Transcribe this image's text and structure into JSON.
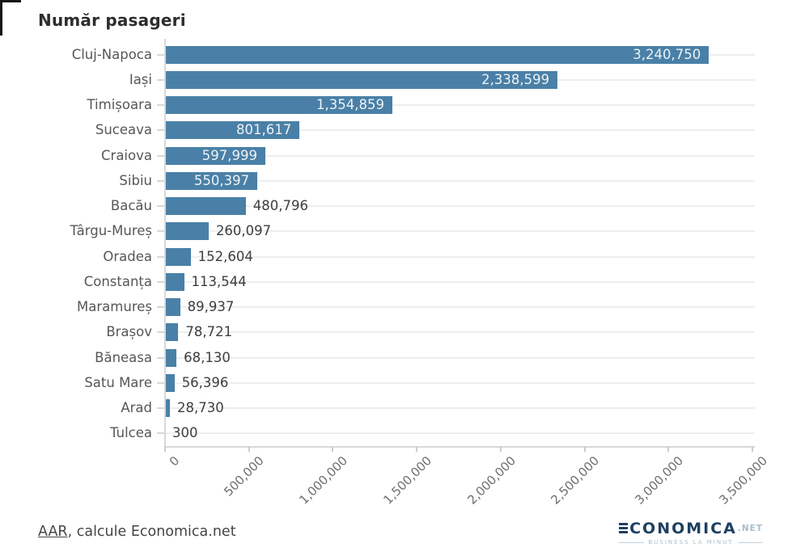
{
  "title": "Număr pasageri",
  "chart_data": {
    "type": "bar",
    "orientation": "horizontal",
    "title": "Număr pasageri",
    "categories": [
      "Cluj-Napoca",
      "Iași",
      "Timișoara",
      "Suceava",
      "Craiova",
      "Sibiu",
      "Bacău",
      "Târgu-Mureș",
      "Oradea",
      "Constanța",
      "Maramureș",
      "Brașov",
      "Băneasa",
      "Satu Mare",
      "Arad",
      "Tulcea"
    ],
    "values": [
      3240750,
      2338599,
      1354859,
      801617,
      597999,
      550397,
      480796,
      260097,
      152604,
      113544,
      89937,
      78721,
      68130,
      56396,
      28730,
      300
    ],
    "xlim": [
      0,
      3500000
    ],
    "x_ticks": [
      0,
      500000,
      1000000,
      1500000,
      2000000,
      2500000,
      3000000,
      3500000
    ],
    "x_tick_labels": [
      "0",
      "500,000",
      "1,000,000",
      "1,500,000",
      "2,000,000",
      "2,500,000",
      "3,000,000",
      "3,500,000"
    ],
    "bar_color": "#4a80a7",
    "grid": "horizontal-category-gridlines",
    "value_label_inside_color": "#edf2f6",
    "value_label_outside_color": "#3e3e3e"
  },
  "footer": {
    "source_link": "AAR",
    "source_rest": ", calcule Economica.net",
    "logo": {
      "name_rest": "CONOMICA",
      "tld": ".NET",
      "tagline": "BUSINESS LA MINUT",
      "navy": "#1f4061",
      "light": "#a9bdcb"
    }
  }
}
